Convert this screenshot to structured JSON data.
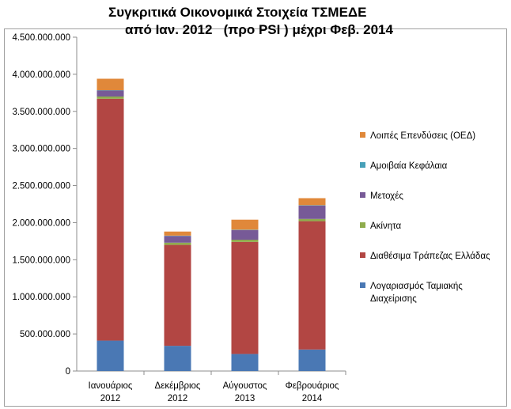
{
  "chart_data": {
    "type": "stacked-bar",
    "title_line1": "Συγκριτικά Οικονομικά Στοιχεία ΤΣΜΕΔΕ",
    "title_line2": "από Ιαν. 2012   (προ PSI ) μέχρι Φεβ. 2014",
    "ylim": [
      0,
      4500000000
    ],
    "yticks": [
      "0",
      "500.000.000",
      "1.000.000.000",
      "1.500.000.000",
      "2.000.000.000",
      "2.500.000.000",
      "3.000.000.000",
      "3.500.000.000",
      "4.000.000.000",
      "4.500.000.000"
    ],
    "ytick_values": [
      0,
      500000000,
      1000000000,
      1500000000,
      2000000000,
      2500000000,
      3000000000,
      3500000000,
      4000000000,
      4500000000
    ],
    "categories": [
      [
        "Ιανουάριος",
        "2012"
      ],
      [
        "Δεκέμβριος",
        "2012"
      ],
      [
        "Αύγουστος",
        "2013"
      ],
      [
        "Φεβρουάριος",
        "2014"
      ]
    ],
    "series": [
      {
        "name": "Λογαριασμός   Ταμιακής Διαχείρισης",
        "legend_lines": [
          "Λογαριασμός   Ταμιακής",
          "Διαχείρισης"
        ],
        "color": "#4a78b4",
        "values": [
          410000000,
          340000000,
          230000000,
          290000000
        ]
      },
      {
        "name": "Διαθέσιμα Τράπεζας Ελλάδας",
        "legend_lines": [
          "Διαθέσιμα Τράπεζας Ελλάδας"
        ],
        "color": "#b24643",
        "values": [
          3260000000,
          1360000000,
          1510000000,
          1730000000
        ]
      },
      {
        "name": "Ακίνητα",
        "legend_lines": [
          "Ακίνητα"
        ],
        "color": "#8fac4d",
        "values": [
          30000000,
          30000000,
          30000000,
          30000000
        ]
      },
      {
        "name": "Μετοχές",
        "legend_lines": [
          "Μετοχές"
        ],
        "color": "#775a97",
        "values": [
          80000000,
          90000000,
          130000000,
          180000000
        ]
      },
      {
        "name": "Αμοιβαία Κεφάλαια",
        "legend_lines": [
          "Αμοιβαία Κεφάλαια"
        ],
        "color": "#47a0b8",
        "values": [
          5000000,
          5000000,
          5000000,
          5000000
        ]
      },
      {
        "name": "Λοιπές Επενδύσεις (ΟΕΔ)",
        "legend_lines": [
          "Λοιπές Επενδύσεις (ΟΕΔ)"
        ],
        "color": "#e0883a",
        "values": [
          155000000,
          55000000,
          135000000,
          95000000
        ]
      }
    ]
  }
}
